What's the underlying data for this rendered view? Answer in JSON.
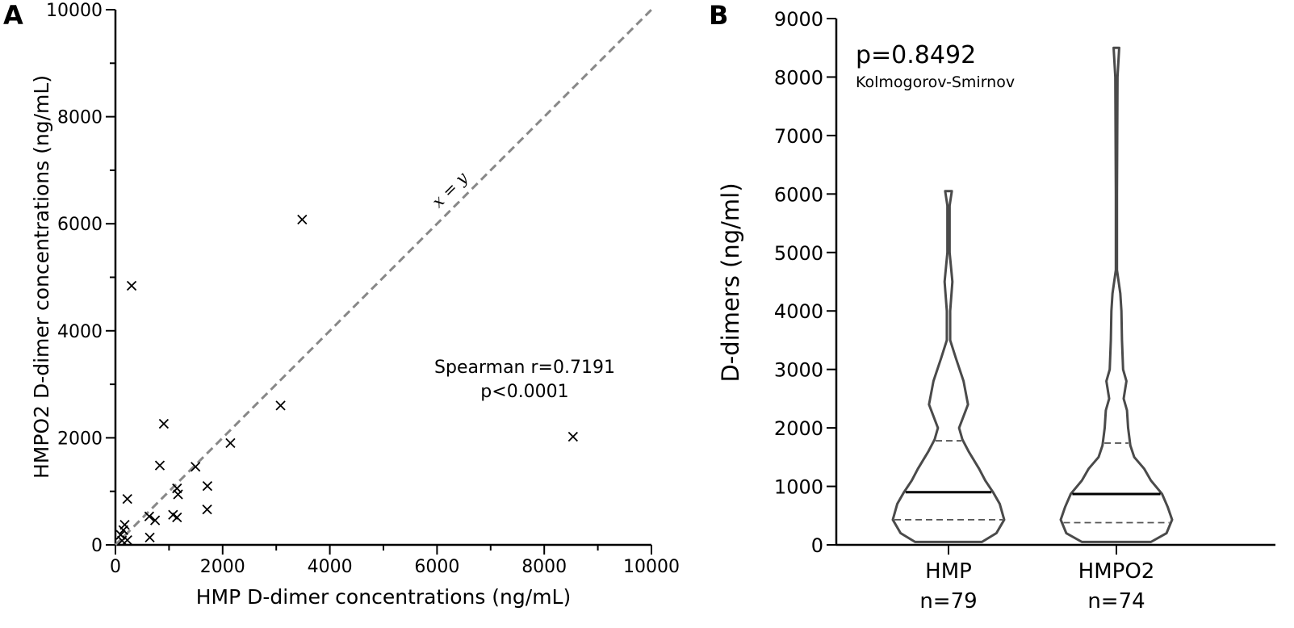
{
  "chart_data": [
    {
      "panel": "A",
      "type": "scatter",
      "xlabel": "HMP D-dimer concentrations (ng/mL)",
      "ylabel": "HMPO2 D-dimer concentrations (ng/mL)",
      "xlim": [
        0,
        10000
      ],
      "ylim": [
        0,
        10000
      ],
      "xticks": [
        "0",
        "2000",
        "4000",
        "6000",
        "8000",
        "10000"
      ],
      "yticks": [
        "0",
        "2000",
        "4000",
        "6000",
        "8000",
        "10000"
      ],
      "reference_line_label": "x = y",
      "annotation": [
        "Spearman r=0.7191",
        "p<0.0001"
      ],
      "marker": "x",
      "points": [
        [
          3081,
          2603
        ],
        [
          902,
          2263
        ],
        [
          2145,
          1903
        ],
        [
          828,
          1484
        ],
        [
          1494,
          1459
        ],
        [
          1149,
          1055
        ],
        [
          1168,
          942
        ],
        [
          1716,
          1099
        ],
        [
          222,
          858
        ],
        [
          1711,
          661
        ],
        [
          631,
          532
        ],
        [
          740,
          458
        ],
        [
          1075,
          562
        ],
        [
          1149,
          513
        ],
        [
          641,
          138
        ],
        [
          173,
          375
        ],
        [
          148,
          276
        ],
        [
          99,
          187
        ],
        [
          222,
          89
        ],
        [
          123,
          79
        ],
        [
          302,
          4842
        ],
        [
          3484,
          6078
        ],
        [
          8537,
          2021
        ]
      ]
    },
    {
      "panel": "B",
      "type": "violin",
      "ylabel": "D-dimers (ng/ml)",
      "ylim": [
        0,
        9000
      ],
      "yticks": [
        "0",
        "1000",
        "2000",
        "3000",
        "4000",
        "5000",
        "6000",
        "7000",
        "8000",
        "9000"
      ],
      "annotation": [
        "p=0.8492",
        "Kolmogorov-Smirnov"
      ],
      "groups": [
        {
          "name": "HMP",
          "n_label": "n=79",
          "median": 900,
          "q1": 430,
          "q3": 1780,
          "density": [
            [
              50,
              0.6
            ],
            [
              200,
              0.86
            ],
            [
              430,
              1.0
            ],
            [
              700,
              0.92
            ],
            [
              900,
              0.8
            ],
            [
              1100,
              0.66
            ],
            [
              1300,
              0.55
            ],
            [
              1600,
              0.36
            ],
            [
              1800,
              0.25
            ],
            [
              2000,
              0.19
            ],
            [
              2400,
              0.35
            ],
            [
              2800,
              0.27
            ],
            [
              3200,
              0.13
            ],
            [
              3500,
              0.03
            ],
            [
              4000,
              0.03
            ],
            [
              4500,
              0.07
            ],
            [
              5000,
              0.02
            ],
            [
              5800,
              0.02
            ],
            [
              6050,
              0.06
            ]
          ]
        },
        {
          "name": "HMPO2",
          "n_label": "n=74",
          "median": 870,
          "q1": 380,
          "q3": 1740,
          "density": [
            [
              50,
              0.62
            ],
            [
              200,
              0.9
            ],
            [
              430,
              1.0
            ],
            [
              650,
              0.92
            ],
            [
              870,
              0.82
            ],
            [
              1100,
              0.62
            ],
            [
              1300,
              0.5
            ],
            [
              1500,
              0.32
            ],
            [
              1700,
              0.25
            ],
            [
              2000,
              0.21
            ],
            [
              2300,
              0.19
            ],
            [
              2500,
              0.13
            ],
            [
              2800,
              0.18
            ],
            [
              3000,
              0.12
            ],
            [
              3500,
              0.1
            ],
            [
              4000,
              0.09
            ],
            [
              4300,
              0.07
            ],
            [
              4700,
              0.01
            ],
            [
              6000,
              0.01
            ],
            [
              8000,
              0.02
            ],
            [
              8500,
              0.05
            ]
          ]
        }
      ]
    }
  ],
  "labels": {
    "panel_a": "A",
    "panel_b": "B"
  }
}
